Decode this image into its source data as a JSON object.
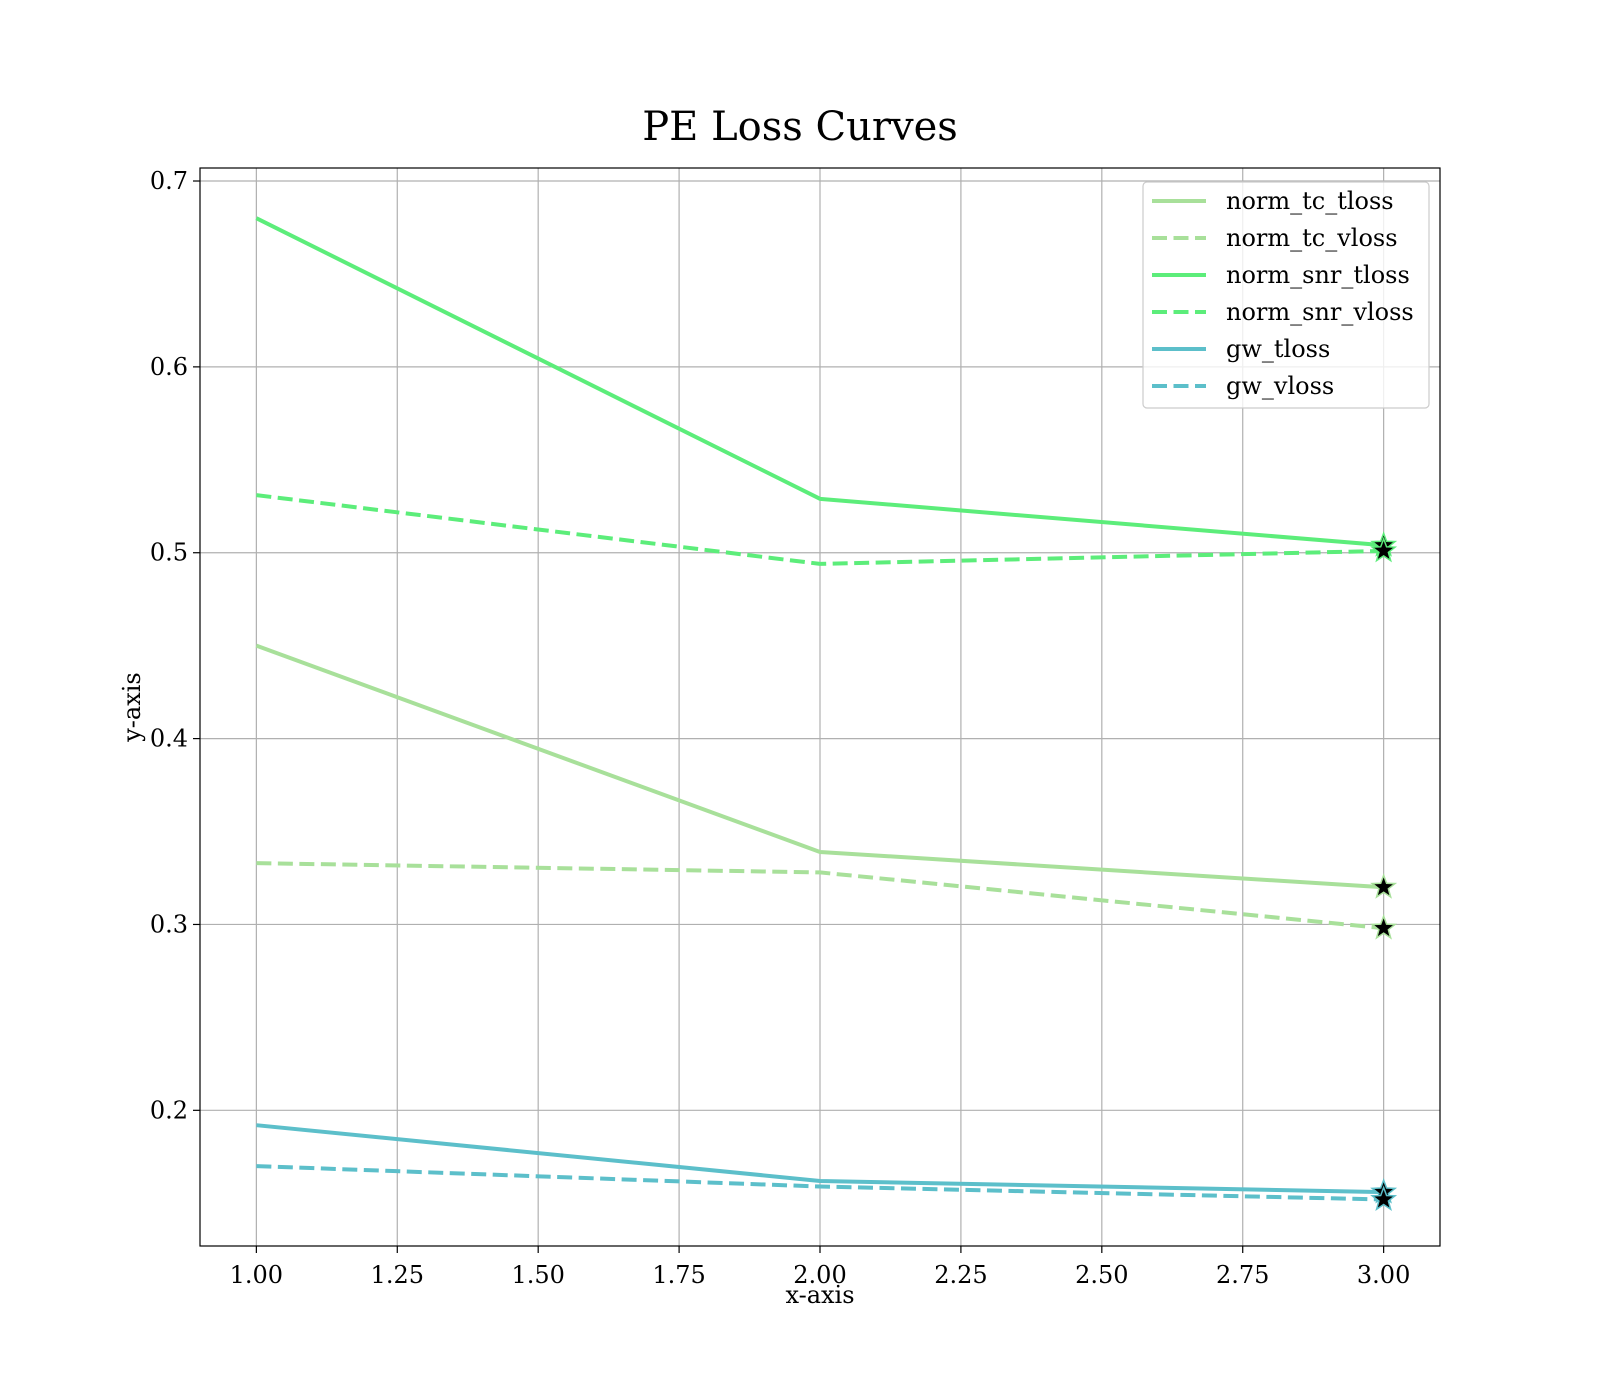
{
  "chart_data": {
    "type": "line",
    "title": "PE Loss Curves",
    "xlabel": "x-axis",
    "ylabel": "y-axis",
    "xlim": [
      0.9,
      3.1
    ],
    "ylim": [
      0.127,
      0.707
    ],
    "xticks": [
      "1.00",
      "1.25",
      "1.50",
      "1.75",
      "2.00",
      "2.25",
      "2.50",
      "2.75",
      "3.00"
    ],
    "yticks": [
      "0.2",
      "0.3",
      "0.4",
      "0.5",
      "0.6",
      "0.7"
    ],
    "grid": true,
    "legend_position": "top-right",
    "x": [
      1,
      2,
      3
    ],
    "series": [
      {
        "name": "norm_tc_tloss",
        "values": [
          0.45,
          0.339,
          0.32
        ],
        "color": "#a8e09a",
        "style": "solid"
      },
      {
        "name": "norm_tc_vloss",
        "values": [
          0.333,
          0.328,
          0.298
        ],
        "color": "#a8e09a",
        "style": "dashed"
      },
      {
        "name": "norm_snr_tloss",
        "values": [
          0.68,
          0.529,
          0.504
        ],
        "color": "#5ced7a",
        "style": "solid"
      },
      {
        "name": "norm_snr_vloss",
        "values": [
          0.531,
          0.494,
          0.501
        ],
        "color": "#5ced7a",
        "style": "dashed"
      },
      {
        "name": "gw_tloss",
        "values": [
          0.192,
          0.162,
          0.156
        ],
        "color": "#5cbfca",
        "style": "solid"
      },
      {
        "name": "gw_vloss",
        "values": [
          0.17,
          0.159,
          0.152
        ],
        "color": "#5cbfca",
        "style": "dashed"
      }
    ],
    "marker_at_last_point": "star",
    "marker_color": "#000000"
  }
}
